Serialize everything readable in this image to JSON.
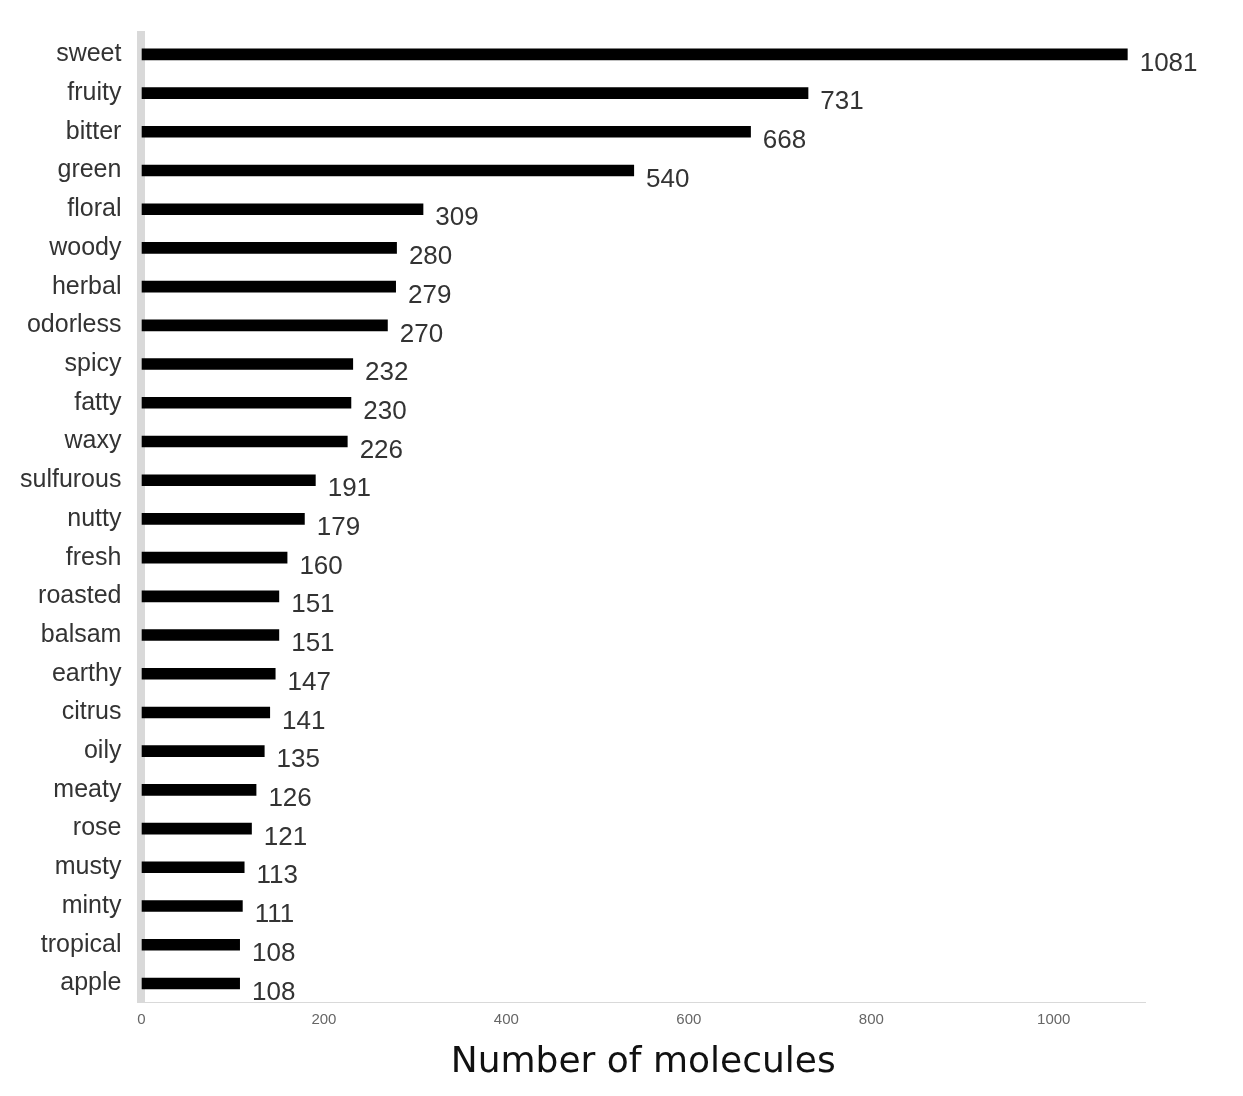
{
  "chart_data": {
    "type": "bar",
    "orientation": "horizontal",
    "xlabel": "Number of molecules",
    "categories": [
      "sweet",
      "fruity",
      "bitter",
      "green",
      "floral",
      "woody",
      "herbal",
      "odorless",
      "spicy",
      "fatty",
      "waxy",
      "sulfurous",
      "nutty",
      "fresh",
      "roasted",
      "balsam",
      "earthy",
      "citrus",
      "oily",
      "meaty",
      "rose",
      "musty",
      "minty",
      "tropical",
      "apple"
    ],
    "values": [
      1081,
      731,
      668,
      540,
      309,
      280,
      279,
      270,
      232,
      230,
      226,
      191,
      179,
      160,
      151,
      151,
      147,
      141,
      135,
      126,
      121,
      113,
      111,
      108,
      108
    ],
    "color": "#000000",
    "data_labels": true,
    "xlim": [
      0,
      1100
    ],
    "xticks": [
      0,
      200,
      400,
      600,
      800,
      1000
    ],
    "grid": false,
    "legend": false
  }
}
